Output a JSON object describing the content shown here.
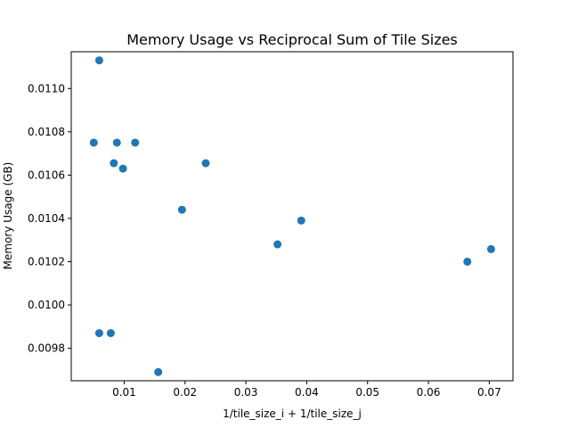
{
  "chart_data": {
    "type": "scatter",
    "title": "Memory Usage vs Reciprocal Sum of Tile Sizes",
    "xlabel": "1/tile_size_i + 1/tile_size_j",
    "ylabel": "Memory Usage (GB)",
    "xlim": [
      0.0013,
      0.0739
    ],
    "ylim": [
      0.00965,
      0.01117
    ],
    "xticks": [
      0.01,
      0.02,
      0.03,
      0.04,
      0.05,
      0.06,
      0.07
    ],
    "xtick_labels": [
      "0.01",
      "0.02",
      "0.03",
      "0.04",
      "0.05",
      "0.06",
      "0.07"
    ],
    "yticks": [
      0.0098,
      0.01,
      0.0102,
      0.0104,
      0.0106,
      0.0108,
      0.011
    ],
    "ytick_labels": [
      "0.0098",
      "0.0100",
      "0.0102",
      "0.0104",
      "0.0106",
      "0.0108",
      "0.0110"
    ],
    "grid": false,
    "color": "#1f77b4",
    "points": [
      {
        "x": 0.0059,
        "y": 0.01113
      },
      {
        "x": 0.005,
        "y": 0.01075
      },
      {
        "x": 0.0088,
        "y": 0.01075
      },
      {
        "x": 0.0118,
        "y": 0.01075
      },
      {
        "x": 0.0083,
        "y": 0.010655
      },
      {
        "x": 0.0098,
        "y": 0.01063
      },
      {
        "x": 0.0234,
        "y": 0.010655
      },
      {
        "x": 0.0195,
        "y": 0.01044
      },
      {
        "x": 0.0391,
        "y": 0.01039
      },
      {
        "x": 0.0352,
        "y": 0.01028
      },
      {
        "x": 0.0664,
        "y": 0.0102
      },
      {
        "x": 0.0703,
        "y": 0.010258
      },
      {
        "x": 0.0059,
        "y": 0.00987
      },
      {
        "x": 0.0078,
        "y": 0.00987
      },
      {
        "x": 0.0156,
        "y": 0.00969
      }
    ]
  }
}
